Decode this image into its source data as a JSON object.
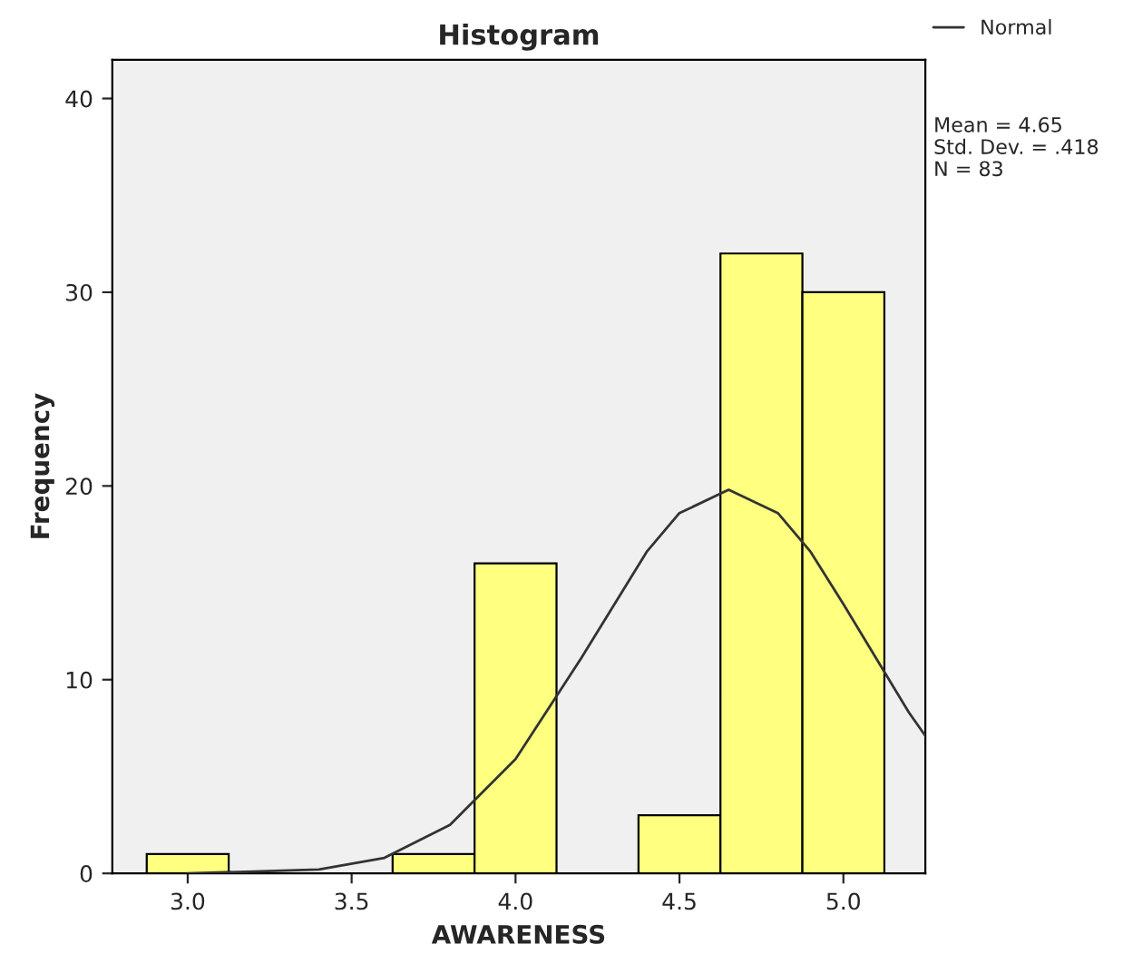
{
  "chart_data": {
    "type": "histogram",
    "title": "Histogram",
    "xlabel": "AWARENESS",
    "ylabel": "Frequency",
    "bins": [
      2.875,
      3.125,
      3.375,
      3.625,
      3.875,
      4.125,
      4.375,
      4.625,
      4.875,
      5.125
    ],
    "values": [
      1,
      0,
      0,
      1,
      16,
      0,
      3,
      32,
      30
    ],
    "color": "#ffff80",
    "series": [
      {
        "type": "line",
        "name": "Normal",
        "color": "#333333",
        "x": [
          3.0,
          3.2,
          3.4,
          3.6,
          3.8,
          4.0,
          4.2,
          4.4,
          4.5,
          4.65,
          4.8,
          4.9,
          5.0,
          5.1,
          5.2,
          5.25
        ],
        "values": [
          0.0,
          0.1,
          0.2,
          0.8,
          2.5,
          5.9,
          11.1,
          16.6,
          18.6,
          19.8,
          18.6,
          16.6,
          13.9,
          11.1,
          8.3,
          7.1
        ]
      }
    ],
    "annotations": [
      "Mean = 4.65",
      "Std. Dev. = .418",
      "N = 83"
    ],
    "xlim": [
      2.77,
      5.25
    ],
    "ylim": [
      0,
      42
    ],
    "xticks": [
      {
        "value": 3.0,
        "label": "3.0"
      },
      {
        "value": 3.5,
        "label": "3.5"
      },
      {
        "value": 4.0,
        "label": "4.0"
      },
      {
        "value": 4.5,
        "label": "4.5"
      },
      {
        "value": 5.0,
        "label": "5.0"
      }
    ],
    "yticks": [
      0,
      10,
      20,
      30,
      40
    ],
    "legend": "top right",
    "grid": false
  }
}
